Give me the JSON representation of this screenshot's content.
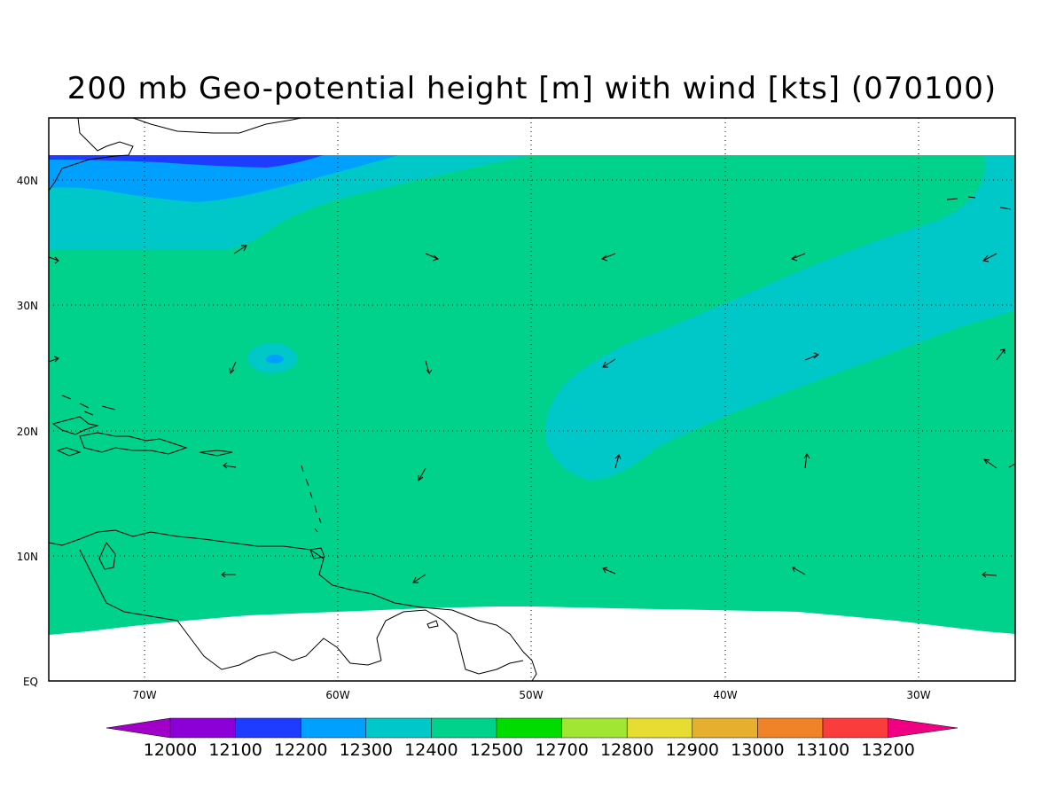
{
  "title": "200 mb Geo-potential height [m] with wind [kts] (070100)",
  "axes": {
    "lat_labels": [
      "40N",
      "30N",
      "20N",
      "10N",
      "EQ"
    ],
    "lon_labels": [
      "70W",
      "60W",
      "50W",
      "40W",
      "30W"
    ]
  },
  "colorbar": {
    "labels": [
      "12000",
      "12100",
      "12200",
      "12300",
      "12400",
      "12500",
      "12700",
      "12800",
      "12900",
      "13000",
      "13100",
      "13200"
    ],
    "colors": [
      "#8c00d7",
      "#1e3cff",
      "#00a0ff",
      "#00c8c8",
      "#00d28c",
      "#00dc00",
      "#a0e632",
      "#e6dc32",
      "#e6af2d",
      "#f08228",
      "#fa3c3c",
      "#f00082"
    ],
    "under_color": "#a000c8",
    "over_color": "#f00082"
  },
  "field_colors": {
    "land_outline": "#000000",
    "missing": "#ffffff"
  }
}
